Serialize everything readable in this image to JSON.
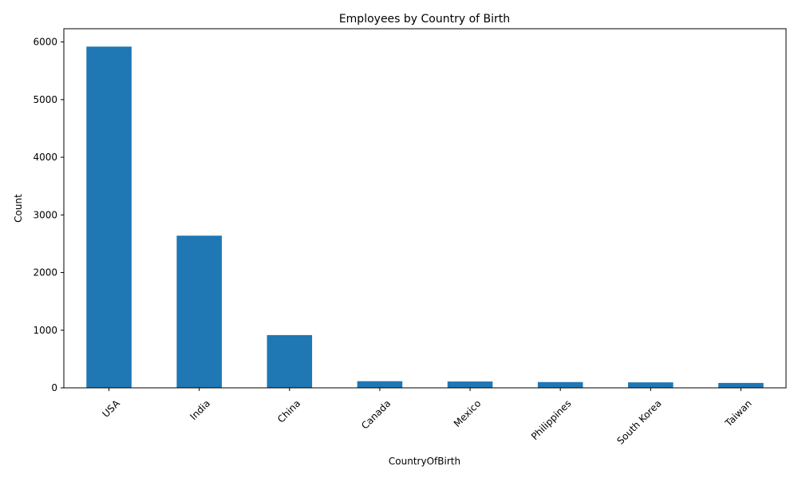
{
  "chart_data": {
    "type": "bar",
    "title": "Employees by Country of Birth",
    "xlabel": "CountryOfBirth",
    "ylabel": "Count",
    "categories": [
      "USA",
      "India",
      "China",
      "Canada",
      "Mexico",
      "Philippines",
      "South Korea",
      "Taiwan"
    ],
    "values": [
      5920,
      2640,
      915,
      115,
      110,
      100,
      95,
      85
    ],
    "ylim": [
      0,
      6230
    ],
    "yticks": [
      0,
      1000,
      2000,
      3000,
      4000,
      5000,
      6000
    ],
    "grid": false,
    "legend": "none",
    "bar_color": "#1f77b4"
  }
}
